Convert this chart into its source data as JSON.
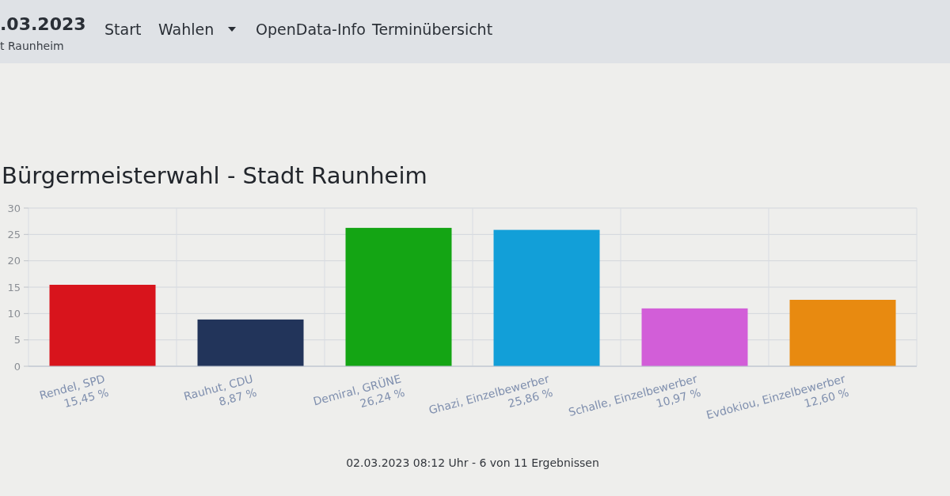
{
  "chart_data": {
    "type": "bar",
    "title": "Bürgermeisterwahl - Stadt Raunheim",
    "categories": [
      "Rendel, SPD",
      "Rauhut, CDU",
      "Demiral, GRÜNE",
      "Ghazi, Einzelbewerber",
      "Schalle, Einzelbewerber",
      "Evdokiou, Einzelbewerber"
    ],
    "values": [
      15.45,
      8.87,
      26.24,
      25.86,
      10.97,
      12.6
    ],
    "value_labels": [
      "15,45 %",
      "8,87 %",
      "26,24 %",
      "25,86 %",
      "10,97 %",
      "12,60 %"
    ],
    "colors": [
      "#d8141c",
      "#22345a",
      "#14a514",
      "#129fd8",
      "#d25ed8",
      "#e88a10"
    ],
    "ylim": [
      0,
      30
    ],
    "yticks": [
      0,
      5,
      10,
      15,
      20,
      25,
      30
    ],
    "grid": true,
    "annotations": [
      ".03.2023",
      "t Raunheim",
      "Start",
      "Wahlen",
      "OpenData-Info",
      "Terminübersicht",
      "02.03.2023 08:12 Uhr - 6 von 11 Ergebnissen"
    ]
  }
}
